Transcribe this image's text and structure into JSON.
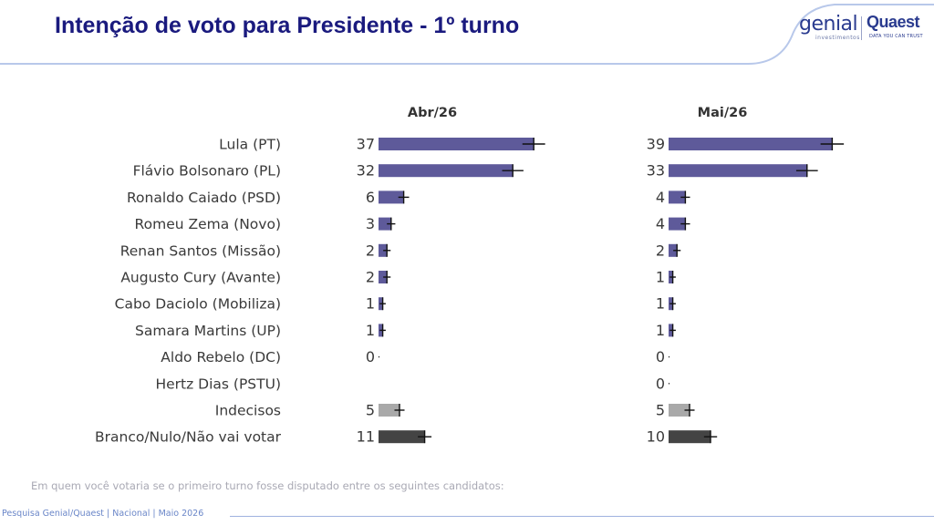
{
  "title": "Intenção de voto para Presidente - 1º turno",
  "logos": {
    "genial": "genial",
    "genial_sub": "investimentos",
    "quaest": "Quaest",
    "quaest_sub": "DATA YOU CAN TRUST"
  },
  "footnote": "Em quem você votaria se o primeiro turno fosse disputado entre os seguintes candidatos:",
  "footer": "Pesquisa Genial/Quaest | Nacional | Maio 2026",
  "colors": {
    "title": "#1a1a7e",
    "candidate_bar": "#5e5a9a",
    "undecided_bar": "#a9a9a9",
    "blank_bar": "#444444",
    "error_bar": "#111111"
  },
  "chart_data": {
    "type": "bar",
    "orientation": "horizontal",
    "categories": [
      "Lula (PT)",
      "Flávio Bolsonaro (PL)",
      "Ronaldo Caiado (PSD)",
      "Romeu Zema (Novo)",
      "Renan Santos (Missão)",
      "Augusto Cury (Avante)",
      "Cabo Daciolo (Mobiliza)",
      "Samara Martins (UP)",
      "Aldo Rebelo (DC)",
      "Hertz Dias (PSTU)",
      "Indecisos",
      "Branco/Nulo/Não vai votar"
    ],
    "series": [
      {
        "name": "Abr/26",
        "values": [
          37,
          32,
          6,
          3,
          2,
          2,
          1,
          1,
          0,
          null,
          5,
          11
        ],
        "labels": [
          "37",
          "32",
          "6",
          "3",
          "2",
          "2",
          "1",
          "1",
          "0",
          "",
          "5",
          "11"
        ]
      },
      {
        "name": "Mai/26",
        "values": [
          39,
          33,
          4,
          4,
          2,
          1,
          1,
          1,
          0,
          0,
          5,
          10
        ],
        "labels": [
          "39",
          "33",
          "4",
          "4",
          "2",
          "1",
          "1",
          "1",
          "0",
          "0",
          "5",
          "10"
        ]
      }
    ],
    "category_kinds": [
      "candidate",
      "candidate",
      "candidate",
      "candidate",
      "candidate",
      "candidate",
      "candidate",
      "candidate",
      "candidate",
      "candidate",
      "undecided",
      "blank"
    ],
    "error_bars": true,
    "xlim": [
      0,
      50
    ],
    "grid": false,
    "legend": "none"
  }
}
